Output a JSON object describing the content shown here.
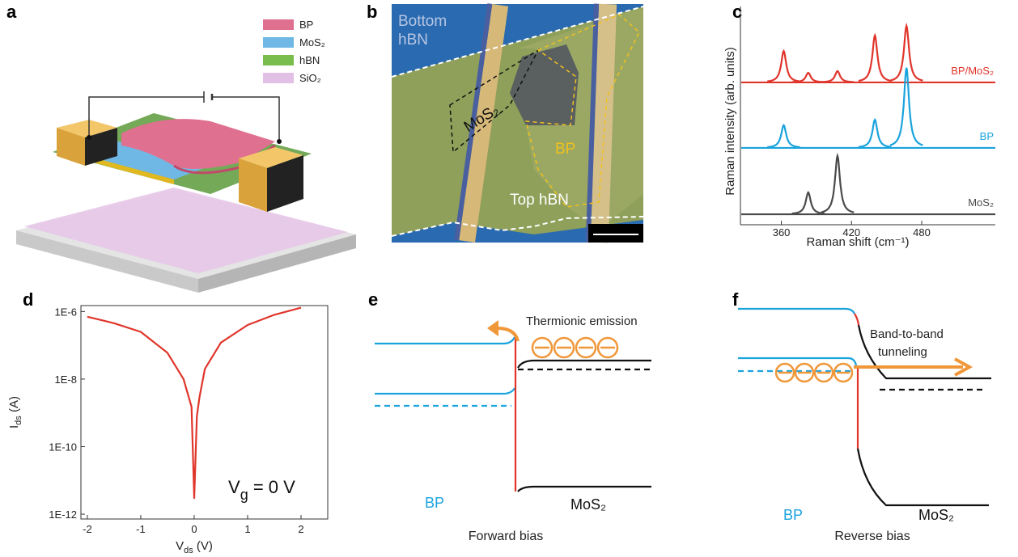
{
  "panel_labels": [
    "a",
    "b",
    "c",
    "d",
    "e",
    "f"
  ],
  "panel_a": {
    "legend": [
      "BP",
      "MoS₂",
      "hBN",
      "SiO₂"
    ]
  },
  "panel_b": {
    "labels": [
      "Bottom",
      "hBN",
      "MoS₂",
      "BP",
      "Top hBN"
    ]
  },
  "chart_data": [
    {
      "type": "spectrum",
      "x_label": "Raman shift (cm⁻¹)",
      "y_label": "Raman intensity (arb. units)",
      "xlim": [
        325,
        543
      ],
      "xticks": [
        360,
        420,
        480
      ],
      "ylim": [
        0,
        100
      ],
      "series": [
        {
          "name": "BP/MoS₂",
          "color": "#e0352b",
          "baseline": 65.2,
          "peaks": [
            {
              "x": 362,
              "y": 79.6
            },
            {
              "x": 383,
              "y": 69.6
            },
            {
              "x": 408,
              "y": 70.4
            },
            {
              "x": 440,
              "y": 86.7
            },
            {
              "x": 467,
              "y": 91.1
            }
          ]
        },
        {
          "name": "BP",
          "color": "#1ba3dd",
          "baseline": 35.2,
          "peaks": [
            {
              "x": 362,
              "y": 45.6
            },
            {
              "x": 440,
              "y": 48.1
            },
            {
              "x": 467,
              "y": 71.9
            }
          ]
        },
        {
          "name": "MoS₂",
          "color": "#4a4a4a",
          "baseline": 4.8,
          "peaks": [
            {
              "x": 383,
              "y": 14.8
            },
            {
              "x": 408,
              "y": 31.5
            }
          ]
        }
      ]
    },
    {
      "type": "line",
      "x_label": {
        "main": "V",
        "sub": "ds",
        "rest": " (V)"
      },
      "y_label": {
        "main": "I",
        "sub": "ds",
        "rest": " (A)"
      },
      "annotation": {
        "main": "V",
        "sub": "g",
        "rest": " = 0 V"
      },
      "log_y": true,
      "xlim": [
        -2.12,
        2.5
      ],
      "xticks": [
        -2,
        -1,
        0,
        1,
        2
      ],
      "ylim": [
        7.2e-13,
        1.5e-06
      ],
      "yticks": [
        {
          "value": 1e-12,
          "label": "1E-12"
        },
        {
          "value": 1e-10,
          "label": "1E-10"
        },
        {
          "value": 1e-08,
          "label": "1E-8"
        },
        {
          "value": 1e-06,
          "label": "1E-6"
        }
      ],
      "x": [
        -2,
        -1.5,
        -1,
        -0.5,
        -0.2,
        -0.05,
        0,
        0.05,
        0.1,
        0.2,
        0.5,
        1,
        1.5,
        2
      ],
      "series": [
        {
          "color": "#e0352b",
          "values": [
            7e-07,
            4.5e-07,
            2.5e-07,
            6e-08,
            1e-08,
            1.5e-09,
            3e-12,
            8e-10,
            3e-09,
            2e-08,
            1.2e-07,
            4e-07,
            8e-07,
            1.3e-06
          ]
        }
      ]
    }
  ],
  "panel_e": {
    "annotation": "Thermionic emission",
    "left": "BP",
    "right": "MoS₂",
    "caption": "Forward bias"
  },
  "panel_f": {
    "annotation": [
      "Band-to-band",
      "tunneling"
    ],
    "left": "BP",
    "right": "MoS₂",
    "caption": "Reverse bias"
  }
}
